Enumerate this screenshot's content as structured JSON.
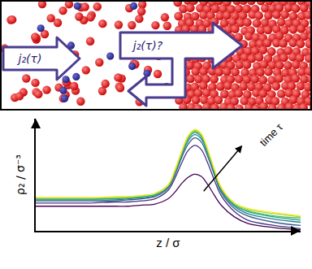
{
  "chart_data": {
    "type": "line",
    "x_label": "z / σ",
    "y_label": "ρ₂ / σ⁻³",
    "x": [
      0,
      1,
      2,
      3,
      3.5,
      4,
      4.5,
      5,
      5.25,
      5.5,
      5.75,
      6,
      6.25,
      6.5,
      6.75,
      7,
      7.5,
      8,
      9,
      10
    ],
    "series": [
      {
        "color": "#440154",
        "values": [
          2.3,
          2.3,
          2.3,
          2.3,
          2.3,
          2.4,
          2.5,
          3.0,
          3.6,
          4.4,
          5.0,
          5.3,
          5.1,
          4.3,
          3.3,
          2.4,
          1.3,
          0.7,
          0.3,
          0.1
        ]
      },
      {
        "color": "#46327e",
        "values": [
          2.6,
          2.6,
          2.6,
          2.7,
          2.7,
          2.8,
          3.0,
          3.8,
          4.9,
          6.3,
          7.5,
          8.0,
          7.6,
          6.3,
          4.7,
          3.3,
          1.8,
          1.0,
          0.5,
          0.2
        ]
      },
      {
        "color": "#365c8d",
        "values": [
          2.8,
          2.8,
          2.8,
          2.8,
          2.9,
          3.0,
          3.2,
          4.0,
          5.2,
          6.8,
          8.1,
          8.7,
          8.3,
          6.9,
          5.2,
          3.6,
          2.1,
          1.4,
          0.8,
          0.5
        ]
      },
      {
        "color": "#277f8e",
        "values": [
          2.9,
          2.9,
          2.9,
          2.9,
          3.0,
          3.1,
          3.3,
          4.1,
          5.4,
          7.0,
          8.4,
          9.0,
          8.6,
          7.2,
          5.4,
          3.8,
          2.3,
          1.6,
          1.1,
          0.8
        ]
      },
      {
        "color": "#1fa187",
        "values": [
          3.0,
          3.0,
          3.0,
          3.0,
          3.1,
          3.2,
          3.4,
          4.2,
          5.5,
          7.1,
          8.6,
          9.2,
          8.8,
          7.3,
          5.5,
          3.9,
          2.4,
          1.8,
          1.3,
          1.0
        ]
      },
      {
        "color": "#4ac16d",
        "values": [
          3.0,
          3.0,
          3.0,
          3.1,
          3.1,
          3.2,
          3.4,
          4.2,
          5.5,
          7.2,
          8.7,
          9.3,
          8.9,
          7.4,
          5.6,
          4.0,
          2.5,
          1.9,
          1.4,
          1.2
        ]
      },
      {
        "color": "#a0da39",
        "values": [
          3.1,
          3.1,
          3.1,
          3.1,
          3.2,
          3.3,
          3.5,
          4.3,
          5.6,
          7.3,
          8.8,
          9.4,
          9.0,
          7.5,
          5.7,
          4.0,
          2.6,
          2.0,
          1.6,
          1.3
        ]
      },
      {
        "color": "#fde725",
        "values": [
          3.1,
          3.1,
          3.1,
          3.2,
          3.2,
          3.3,
          3.5,
          4.3,
          5.7,
          7.4,
          8.9,
          9.5,
          9.1,
          7.6,
          5.7,
          4.1,
          2.6,
          2.1,
          1.7,
          1.4
        ]
      }
    ],
    "xlim": [
      0,
      10
    ],
    "ylim": [
      0,
      10.5
    ],
    "xticks": [],
    "yticks": [],
    "tick_labels": false,
    "grid": false,
    "annotations": [
      {
        "text": "time τ"
      }
    ]
  },
  "top_panel": {
    "inflow_label": "j₂(τ)",
    "interface_label": "j₂(τ)?"
  }
}
